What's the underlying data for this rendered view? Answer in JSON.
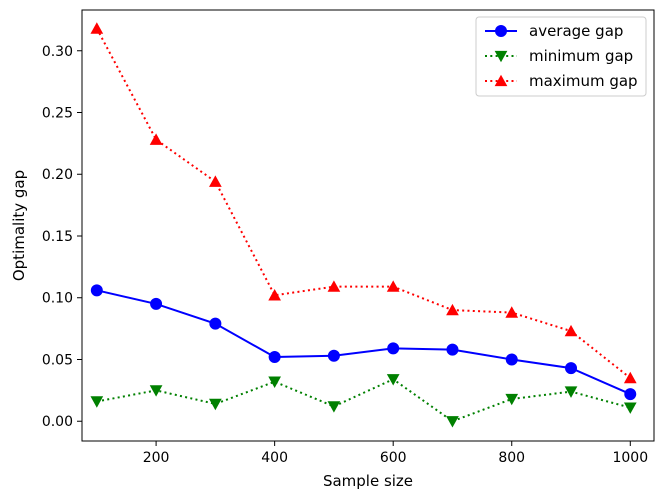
{
  "chart_data": {
    "type": "line",
    "xlabel": "Sample size",
    "ylabel": "Optimality gap",
    "xlim": [
      75,
      1040
    ],
    "ylim": [
      -0.016,
      0.333
    ],
    "xticks": [
      200,
      400,
      600,
      800,
      1000
    ],
    "yticks": [
      0.0,
      0.05,
      0.1,
      0.15,
      0.2,
      0.25,
      0.3
    ],
    "ytick_labels": [
      "0.00",
      "0.05",
      "0.10",
      "0.15",
      "0.20",
      "0.25",
      "0.30"
    ],
    "legend_position": "top-right",
    "grid": false,
    "x": [
      100,
      200,
      300,
      400,
      500,
      600,
      700,
      800,
      900,
      1000
    ],
    "series": [
      {
        "name": "average gap",
        "color": "#0000ff",
        "linestyle": "solid",
        "marker": "circle",
        "values": [
          0.106,
          0.095,
          0.079,
          0.052,
          0.053,
          0.059,
          0.058,
          0.05,
          0.043,
          0.022
        ]
      },
      {
        "name": "minimum gap",
        "color": "#008000",
        "linestyle": "dotted",
        "marker": "triangle-down",
        "values": [
          0.016,
          0.025,
          0.014,
          0.032,
          0.012,
          0.034,
          0.0,
          0.018,
          0.024,
          0.011
        ]
      },
      {
        "name": "maximum gap",
        "color": "#ff0000",
        "linestyle": "dotted",
        "marker": "triangle-up",
        "values": [
          0.318,
          0.228,
          0.194,
          0.102,
          0.109,
          0.109,
          0.09,
          0.088,
          0.073,
          0.035
        ]
      }
    ]
  }
}
